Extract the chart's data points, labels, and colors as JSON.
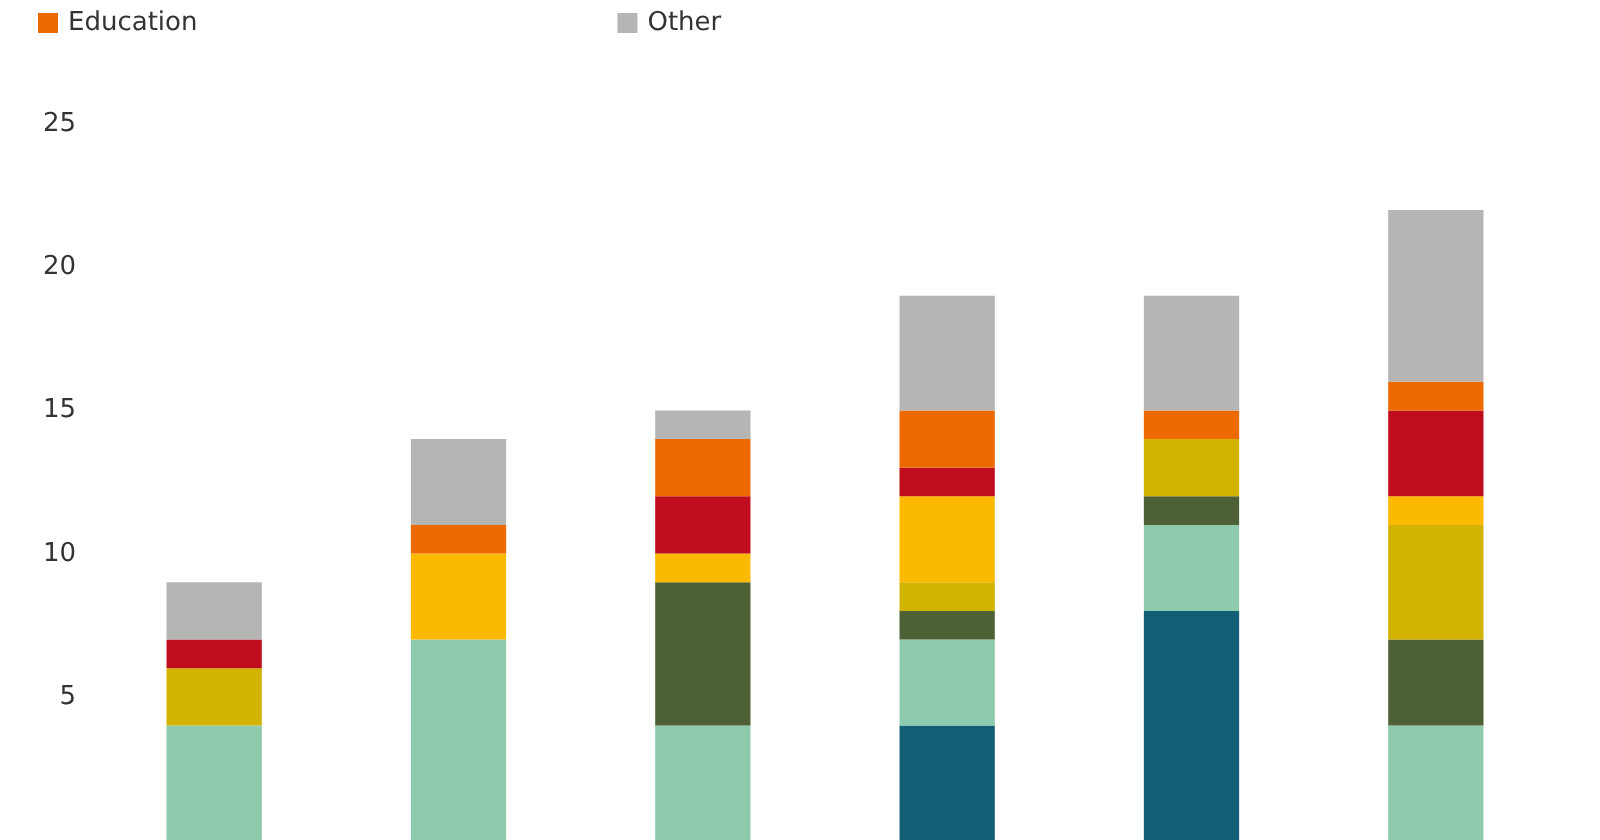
{
  "chart_data": {
    "type": "bar",
    "stacked": true,
    "categories": [
      null,
      null,
      null,
      null,
      null,
      null
    ],
    "series": [
      {
        "color": "#125f75",
        "values": [
          null,
          null,
          null,
          4,
          8,
          null
        ]
      },
      {
        "color": "#8ecbad",
        "values": [
          4,
          7,
          4,
          3,
          3,
          4
        ]
      },
      {
        "color": "#4e6136",
        "values": [
          null,
          null,
          5,
          1,
          1,
          3
        ]
      },
      {
        "color": "#d2b300",
        "values": [
          2,
          null,
          null,
          1,
          2,
          4
        ]
      },
      {
        "color": "#fbb900",
        "values": [
          null,
          3,
          1,
          3,
          null,
          1
        ]
      },
      {
        "color": "#c00d1e",
        "values": [
          1,
          null,
          2,
          1,
          null,
          3
        ]
      },
      {
        "name": "Education",
        "color": "#ed6a00",
        "values": [
          null,
          1,
          2,
          2,
          1,
          1
        ]
      },
      {
        "name": "Other",
        "color": "#b5b5b3",
        "values": [
          2,
          3,
          1,
          4,
          4,
          6
        ]
      }
    ],
    "ylim": [
      0,
      25
    ],
    "yticks": [
      5,
      10,
      15,
      20,
      25
    ],
    "grid": false,
    "legend": "top left",
    "tick_labels": "y"
  }
}
